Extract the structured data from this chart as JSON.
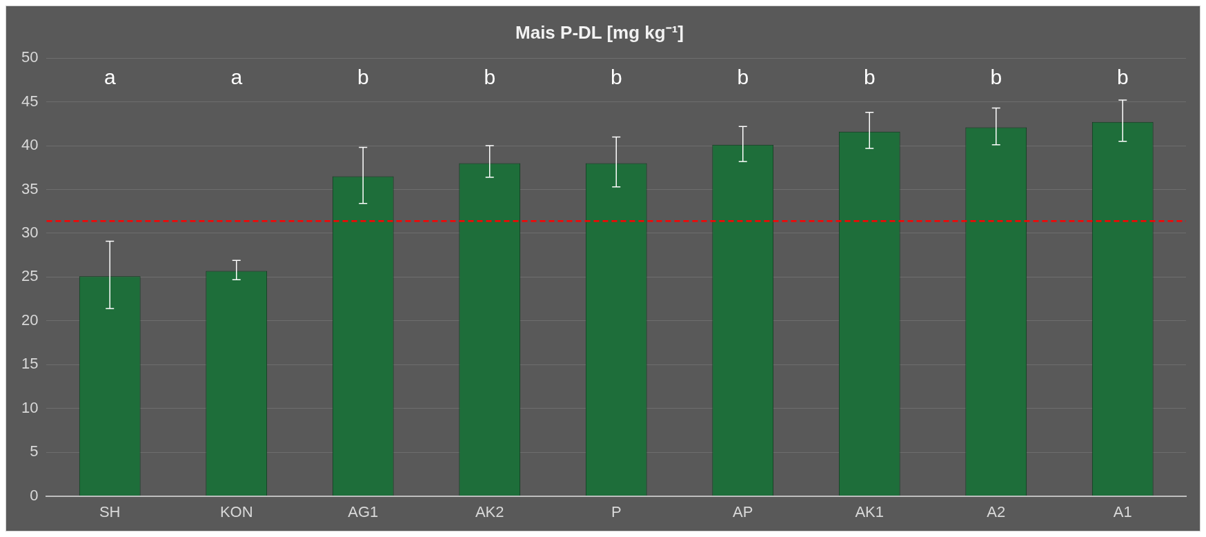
{
  "chart_data": {
    "type": "bar",
    "title": "Mais P-DL [mg kg⁻¹]",
    "categories": [
      "SH",
      "KON",
      "AG1",
      "AK2",
      "P",
      "AP",
      "AK1",
      "A2",
      "A1"
    ],
    "values": [
      25.1,
      25.7,
      36.5,
      38.0,
      38.0,
      40.1,
      41.6,
      42.1,
      42.7
    ],
    "errors": [
      [
        21.4,
        29.1
      ],
      [
        24.7,
        26.9
      ],
      [
        33.4,
        39.8
      ],
      [
        36.4,
        40.0
      ],
      [
        35.3,
        41.0
      ],
      [
        38.2,
        42.2
      ],
      [
        39.7,
        43.8
      ],
      [
        40.1,
        44.3
      ],
      [
        40.5,
        45.2
      ]
    ],
    "color": "#1e6e3a",
    "ylim": [
      0,
      50
    ],
    "yticks": [
      0,
      5,
      10,
      15,
      20,
      25,
      30,
      35,
      40,
      45,
      50
    ],
    "grid": "y",
    "ref_lines": [
      {
        "axis": "y",
        "value": 31.4,
        "color": "#ff0000",
        "line_style": "dashed"
      }
    ],
    "annotations": [
      "a",
      "a",
      "b",
      "b",
      "b",
      "b",
      "b",
      "b",
      "b"
    ]
  }
}
